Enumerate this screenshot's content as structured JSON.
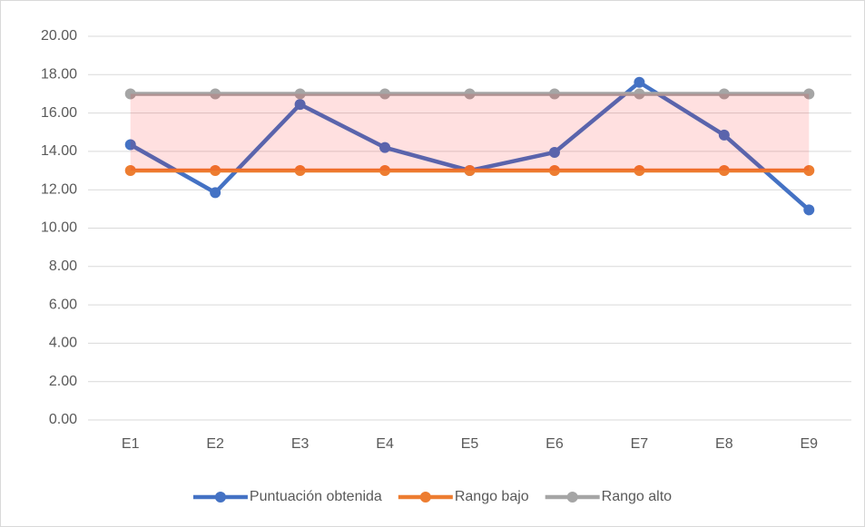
{
  "chart_data": {
    "type": "line",
    "categories": [
      "E1",
      "E2",
      "E3",
      "E4",
      "E5",
      "E6",
      "E7",
      "E8",
      "E9"
    ],
    "series": [
      {
        "name": "Puntuación obtenida",
        "color": "#4472c4",
        "values": [
          14.35,
          11.85,
          16.45,
          14.2,
          13.0,
          13.95,
          17.6,
          14.85,
          10.95
        ]
      },
      {
        "name": "Rango bajo",
        "color": "#ed7d31",
        "values": [
          13,
          13,
          13,
          13,
          13,
          13,
          13,
          13,
          13
        ]
      },
      {
        "name": "Rango alto",
        "color": "#a5a5a5",
        "values": [
          17,
          17,
          17,
          17,
          17,
          17,
          17,
          17,
          17
        ]
      }
    ],
    "band": {
      "between": [
        1,
        2
      ],
      "color": "#ff0000",
      "opacity": 0.12
    },
    "ylim": [
      0,
      20
    ],
    "yticks": [
      {
        "value": 0,
        "label": "0.00"
      },
      {
        "value": 2,
        "label": "2.00"
      },
      {
        "value": 4,
        "label": "4.00"
      },
      {
        "value": 6,
        "label": "6.00"
      },
      {
        "value": 8,
        "label": "8.00"
      },
      {
        "value": 10,
        "label": "10.00"
      },
      {
        "value": 12,
        "label": "12.00"
      },
      {
        "value": 14,
        "label": "14.00"
      },
      {
        "value": 16,
        "label": "16.00"
      },
      {
        "value": 18,
        "label": "18.00"
      },
      {
        "value": 20,
        "label": "20.00"
      }
    ],
    "grid": true,
    "legend": "bottom"
  }
}
